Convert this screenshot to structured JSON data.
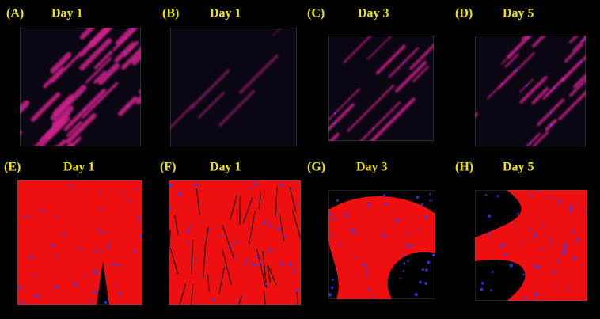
{
  "panels": [
    {
      "label": "(A)",
      "day": "Day 1"
    },
    {
      "label": "(B)",
      "day": "Day 1"
    },
    {
      "label": "(C)",
      "day": "Day 3"
    },
    {
      "label": "(D)",
      "day": "Day 5"
    },
    {
      "label": "(E)",
      "day": "Day 1"
    },
    {
      "label": "(F)",
      "day": "Day 1"
    },
    {
      "label": "(G)",
      "day": "Day 3"
    },
    {
      "label": "(H)",
      "day": "Day 5"
    }
  ]
}
